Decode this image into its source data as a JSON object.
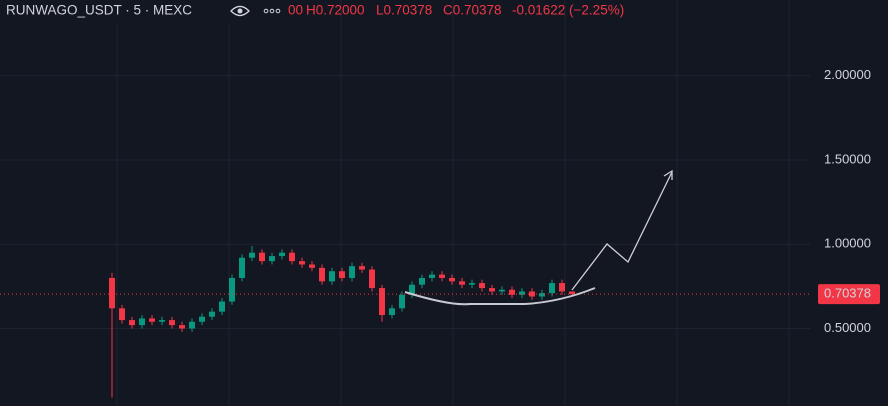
{
  "chart_data": {
    "type": "candlestick",
    "header": {
      "symbol": "RUNWAGO_USDT · 5 · MEXC",
      "open_fragment": "00",
      "high": "H0.72000",
      "low": "L0.70378",
      "close": "C0.70378",
      "change": "-0.01622 (−2.25%)"
    },
    "open": [
      0.8,
      0.62,
      0.55,
      0.52,
      0.56,
      0.54,
      0.55,
      0.52,
      0.5,
      0.54,
      0.57,
      0.6,
      0.66,
      0.8,
      0.92,
      0.95,
      0.9,
      0.93,
      0.95,
      0.9,
      0.88,
      0.86,
      0.78,
      0.84,
      0.8,
      0.87,
      0.85,
      0.74,
      0.58,
      0.62,
      0.7,
      0.76,
      0.8,
      0.82,
      0.8,
      0.78,
      0.76,
      0.77,
      0.74,
      0.72,
      0.73,
      0.7,
      0.72,
      0.69,
      0.71,
      0.77,
      0.72
    ],
    "high": [
      0.83,
      0.64,
      0.57,
      0.58,
      0.58,
      0.57,
      0.57,
      0.54,
      0.56,
      0.59,
      0.62,
      0.68,
      0.82,
      0.94,
      0.99,
      0.97,
      0.95,
      0.97,
      0.97,
      0.92,
      0.9,
      0.88,
      0.86,
      0.86,
      0.89,
      0.89,
      0.87,
      0.76,
      0.64,
      0.72,
      0.78,
      0.82,
      0.84,
      0.84,
      0.82,
      0.8,
      0.79,
      0.79,
      0.76,
      0.75,
      0.75,
      0.74,
      0.74,
      0.73,
      0.79,
      0.79,
      0.72
    ],
    "low": [
      0.09,
      0.53,
      0.5,
      0.5,
      0.52,
      0.52,
      0.5,
      0.48,
      0.48,
      0.52,
      0.55,
      0.58,
      0.64,
      0.78,
      0.9,
      0.88,
      0.88,
      0.91,
      0.88,
      0.86,
      0.84,
      0.76,
      0.76,
      0.78,
      0.78,
      0.83,
      0.72,
      0.54,
      0.56,
      0.6,
      0.68,
      0.74,
      0.78,
      0.78,
      0.76,
      0.74,
      0.74,
      0.72,
      0.7,
      0.7,
      0.68,
      0.68,
      0.67,
      0.67,
      0.69,
      0.7,
      0.70378
    ],
    "close": [
      0.62,
      0.55,
      0.52,
      0.56,
      0.54,
      0.55,
      0.52,
      0.5,
      0.54,
      0.57,
      0.6,
      0.66,
      0.8,
      0.92,
      0.95,
      0.9,
      0.93,
      0.95,
      0.9,
      0.88,
      0.86,
      0.78,
      0.84,
      0.8,
      0.87,
      0.85,
      0.74,
      0.58,
      0.62,
      0.7,
      0.76,
      0.8,
      0.82,
      0.8,
      0.78,
      0.76,
      0.77,
      0.74,
      0.72,
      0.73,
      0.7,
      0.72,
      0.69,
      0.71,
      0.77,
      0.72,
      0.70378
    ],
    "last_price_label": "0.70378",
    "up_color": "#089981",
    "down_color": "#f23645",
    "ylim": [
      0.04,
      2.45
    ],
    "yticks": [
      {
        "value": 0.5,
        "label": "0.50000"
      },
      {
        "value": 1.0,
        "label": "1.00000"
      },
      {
        "value": 1.5,
        "label": "1.50000"
      },
      {
        "value": 2.0,
        "label": "2.00000"
      }
    ],
    "grid": true
  }
}
